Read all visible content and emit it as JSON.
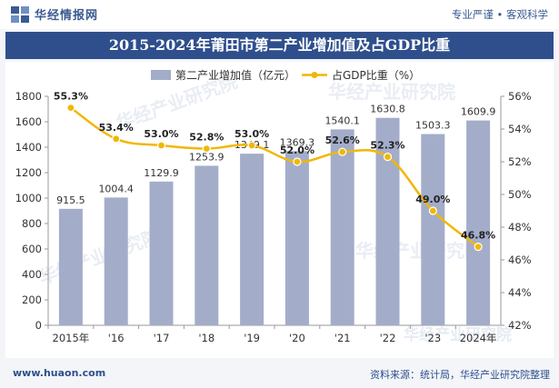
{
  "header": {
    "site_name": "华经情报网",
    "slogan": "专业严谨 • 客观科学"
  },
  "watermark": "华经产业研究院",
  "colors": {
    "bar": "#a3adc9",
    "line": "#f2b705",
    "title_bg": "#2f4f8c",
    "accent": "#3a5a92"
  },
  "chart_data": {
    "type": "bar",
    "title": "2015-2024年莆田市第二产业增加值及占GDP比重",
    "categories": [
      "2015年",
      "'16",
      "'17",
      "'18",
      "'19",
      "'20",
      "'21",
      "'22",
      "'23",
      "2024年"
    ],
    "series": [
      {
        "name": "第二产业增加值（亿元）",
        "type": "bar",
        "axis": "left",
        "values": [
          915.5,
          1004.4,
          1129.9,
          1253.9,
          1349.1,
          1369.3,
          1540.1,
          1630.8,
          1503.3,
          1609.9
        ],
        "labels": [
          "915.5",
          "1004.4",
          "1129.9",
          "1253.9",
          "1349.1",
          "1369.3",
          "1540.1",
          "1630.8",
          "1503.3",
          "1609.9"
        ]
      },
      {
        "name": "占GDP比重（%）",
        "type": "line",
        "axis": "right",
        "values": [
          55.3,
          53.4,
          53.0,
          52.8,
          53.0,
          52.0,
          52.6,
          52.3,
          49.0,
          46.8
        ],
        "labels": [
          "55.3%",
          "53.4%",
          "53.0%",
          "52.8%",
          "53.0%",
          "52.0%",
          "52.6%",
          "52.3%",
          "49.0%",
          "46.8%"
        ]
      }
    ],
    "ylim_left": [
      0,
      1800
    ],
    "yticks_left": [
      0,
      200,
      400,
      600,
      800,
      1000,
      1200,
      1400,
      1600,
      1800
    ],
    "ylim_right": [
      42,
      56
    ],
    "yticks_right": [
      "42%",
      "44%",
      "46%",
      "48%",
      "50%",
      "52%",
      "54%",
      "56%"
    ],
    "legend_position": "top-center",
    "grid": false
  },
  "footer": {
    "url": "www.huaon.com",
    "source": "资料来源：统计局，华经产业研究院整理"
  }
}
